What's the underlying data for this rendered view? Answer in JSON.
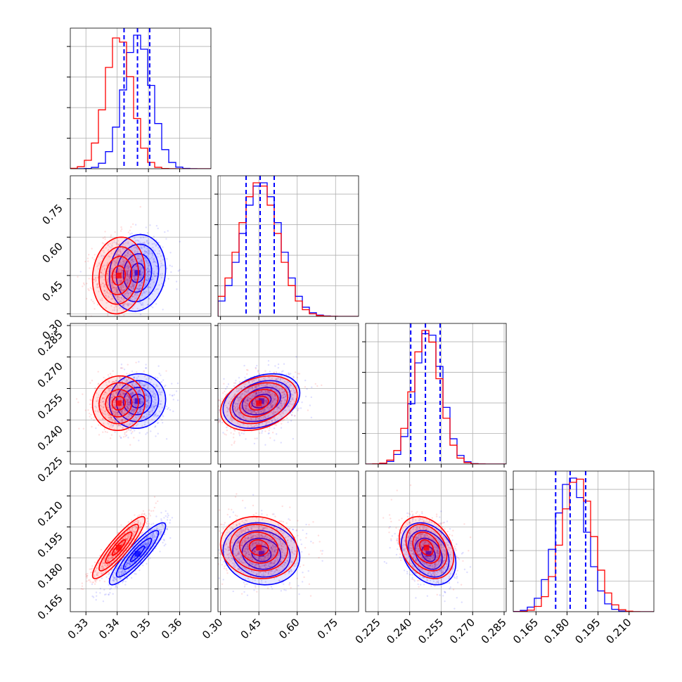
{
  "chart_data": {
    "type": "corner",
    "grid": true,
    "colors": {
      "series_a": "#0000ff",
      "series_b": "#ff0000",
      "grid": "#b0b0b0"
    },
    "parameters": [
      {
        "range": [
          0.325,
          0.37
        ],
        "ticks": [
          0.33,
          0.34,
          0.35,
          0.36
        ],
        "tick_labels": [
          "0.33",
          "0.34",
          "0.35",
          "0.36"
        ]
      },
      {
        "range": [
          0.29,
          0.84
        ],
        "ticks": [
          0.3,
          0.45,
          0.6,
          0.75
        ],
        "tick_labels": [
          "0.30",
          "0.45",
          "0.60",
          "0.75"
        ]
      },
      {
        "range": [
          0.219,
          0.286
        ],
        "ticks": [
          0.225,
          0.24,
          0.255,
          0.27,
          0.285
        ],
        "tick_labels": [
          "0.225",
          "0.240",
          "0.255",
          "0.270",
          "0.285"
        ]
      },
      {
        "range": [
          0.154,
          0.222
        ],
        "ticks": [
          0.165,
          0.18,
          0.195,
          0.21
        ],
        "tick_labels": [
          "0.165",
          "0.180",
          "0.195",
          "0.210"
        ]
      }
    ],
    "series": [
      {
        "color": "#0000ff",
        "means": [
          0.3465,
          0.46,
          0.249,
          0.182
        ],
        "sigmas": [
          0.0045,
          0.075,
          0.0065,
          0.0075
        ],
        "quantiles": [
          [
            0.3422,
            0.3465,
            0.3504
          ],
          [
            0.4,
            0.455,
            0.51
          ],
          [
            0.2405,
            0.2475,
            0.2545
          ],
          [
            0.1745,
            0.1815,
            0.189
          ]
        ],
        "correlations": [
          [
            1,
            0.1,
            0.05,
            0.9
          ],
          [
            0.1,
            1,
            0.3,
            -0.1
          ],
          [
            0.05,
            0.3,
            1,
            -0.3
          ],
          [
            0.9,
            -0.1,
            -0.3,
            1
          ]
        ]
      },
      {
        "color": "#ff0000",
        "means": [
          0.3405,
          0.45,
          0.248,
          0.185
        ],
        "sigmas": [
          0.0042,
          0.075,
          0.0065,
          0.0075
        ],
        "quantiles": [],
        "correlations": [
          [
            1,
            0.1,
            0.05,
            0.9
          ],
          [
            0.1,
            1,
            0.3,
            -0.1
          ],
          [
            0.05,
            0.3,
            1,
            -0.3
          ],
          [
            0.9,
            -0.1,
            -0.3,
            1
          ]
        ]
      }
    ],
    "contour_levels_sigma": [
      0.5,
      1.0,
      1.5,
      2.0
    ]
  }
}
